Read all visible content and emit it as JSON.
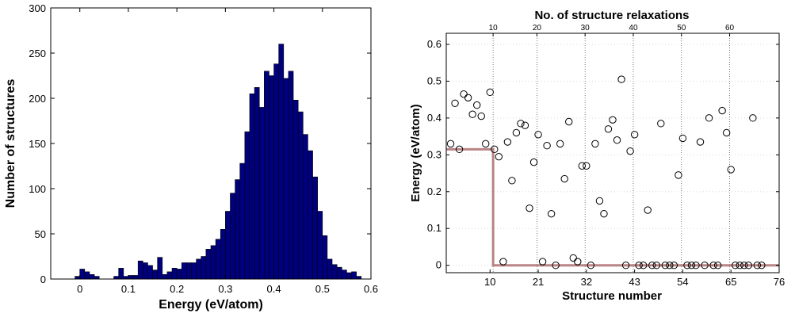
{
  "chart_data": [
    {
      "type": "bar",
      "xlabel": "Energy (eV/atom)",
      "ylabel": "Number of structures",
      "xlim": [
        -0.06,
        0.6
      ],
      "ylim": [
        0,
        300
      ],
      "xticks": [
        "0",
        "0.1",
        "0.2",
        "0.3",
        "0.4",
        "0.5",
        "0.6"
      ],
      "yticks": [
        "0",
        "50",
        "100",
        "150",
        "200",
        "250",
        "300"
      ],
      "bin_width": 0.01,
      "bin_starts": [
        -0.01,
        0.0,
        0.01,
        0.02,
        0.03,
        0.04,
        0.05,
        0.06,
        0.07,
        0.08,
        0.09,
        0.1,
        0.11,
        0.12,
        0.13,
        0.14,
        0.15,
        0.16,
        0.17,
        0.18,
        0.19,
        0.2,
        0.21,
        0.22,
        0.23,
        0.24,
        0.25,
        0.26,
        0.27,
        0.28,
        0.29,
        0.3,
        0.31,
        0.32,
        0.33,
        0.34,
        0.35,
        0.36,
        0.37,
        0.38,
        0.39,
        0.4,
        0.41,
        0.42,
        0.43,
        0.44,
        0.45,
        0.46,
        0.47,
        0.48,
        0.49,
        0.5,
        0.51,
        0.52,
        0.53,
        0.54,
        0.55,
        0.56,
        0.57
      ],
      "values": [
        3,
        11,
        8,
        5,
        3,
        0,
        0,
        0,
        3,
        12,
        3,
        4,
        4,
        20,
        18,
        15,
        10,
        24,
        5,
        8,
        12,
        11,
        18,
        18,
        18,
        22,
        25,
        33,
        37,
        44,
        55,
        75,
        95,
        110,
        128,
        163,
        205,
        212,
        190,
        230,
        225,
        238,
        260,
        222,
        230,
        198,
        185,
        160,
        142,
        113,
        75,
        48,
        22,
        16,
        13,
        10,
        7,
        8,
        3
      ],
      "bar_color": "#00007f",
      "grid": false
    },
    {
      "type": "scatter",
      "title": "No. of structure relaxations",
      "xlabel": "Structure number",
      "ylabel": "Energy (eV/atom)",
      "xlim": [
        0,
        76
      ],
      "ylim": [
        -0.02,
        0.63
      ],
      "xticks": [
        "10",
        "21",
        "32",
        "43",
        "54",
        "65",
        "76"
      ],
      "yticks": [
        "0",
        "0.1",
        "0.2",
        "0.3",
        "0.4",
        "0.5",
        "0.6"
      ],
      "top_ticks": [
        "10",
        "20",
        "30",
        "40",
        "50",
        "60"
      ],
      "x": [
        1,
        2,
        3,
        4,
        5,
        6,
        7,
        8,
        9,
        10,
        11,
        12,
        13,
        14,
        15,
        16,
        17,
        18,
        19,
        20,
        21,
        22,
        23,
        24,
        25,
        26,
        27,
        28,
        29,
        30,
        31,
        32,
        33,
        34,
        35,
        36,
        37,
        38,
        39,
        40,
        41,
        42,
        43,
        44,
        45,
        46,
        47,
        48,
        49,
        50,
        51,
        52,
        53,
        54,
        55,
        56,
        57,
        58,
        59,
        60,
        61,
        62,
        63,
        64,
        65,
        66,
        67,
        68,
        69,
        70,
        71,
        72
      ],
      "y": [
        0.33,
        0.44,
        0.315,
        0.465,
        0.455,
        0.41,
        0.435,
        0.405,
        0.33,
        0.47,
        0.315,
        0.295,
        0.01,
        0.335,
        0.23,
        0.36,
        0.385,
        0.38,
        0.155,
        0.28,
        0.355,
        0.01,
        0.325,
        0.14,
        0.0,
        0.33,
        0.235,
        0.39,
        0.02,
        0.01,
        0.27,
        0.27,
        0.0,
        0.33,
        0.175,
        0.14,
        0.37,
        0.395,
        0.34,
        0.505,
        0.0,
        0.31,
        0.355,
        0.0,
        0.0,
        0.15,
        0.0,
        0.0,
        0.385,
        0.0,
        0.0,
        0.0,
        0.245,
        0.345,
        0.0,
        0.0,
        0.0,
        0.335,
        0.0,
        0.4,
        0.0,
        0.0,
        0.42,
        0.36,
        0.26,
        0.0,
        0.0,
        0.0,
        0.0,
        0.4,
        0.0,
        0.0
      ],
      "best_energy_line": {
        "x": [
          0,
          10.7,
          10.7,
          76
        ],
        "y": [
          0.315,
          0.315,
          0.0,
          0.0
        ],
        "color": "#b98484"
      },
      "vertical_gridlines_x": [
        10.7,
        20.7,
        31.7,
        42.7,
        53.7,
        64.7
      ],
      "marker": "open-circle",
      "grid": "vertical-dotted"
    }
  ]
}
